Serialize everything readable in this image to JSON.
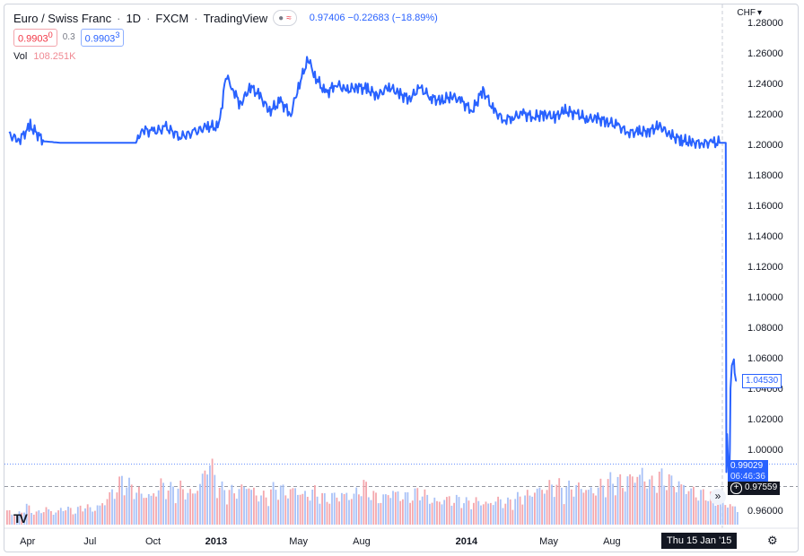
{
  "header": {
    "symbol": "Euro / Swiss Franc",
    "interval": "1D",
    "exchange": "FXCM",
    "source": "TradingView",
    "last_price": "0.97406",
    "change": "−0.22683",
    "change_pct": "(−18.89%)",
    "bid": "0.9903",
    "bid_sup": "0",
    "spread": "0.3",
    "ask": "0.9903",
    "ask_sup": "3",
    "volume_label": "Vol",
    "volume_value": "108.251K",
    "currency": "CHF"
  },
  "price_tags": {
    "current": "1.04530",
    "bid_line": "0.99029",
    "countdown": "06:46:36",
    "crosshair_price": "0.97559",
    "crosshair_time": "Thu 15 Jan '15"
  },
  "colors": {
    "line": "#2962ff",
    "up_volume": "#a9c2f7",
    "down_volume": "#f4a7ad",
    "axis_text": "#131722"
  },
  "icons": {
    "settings": "gear-icon",
    "scroll_right": "double-chevron-right-icon",
    "logo": "tradingview-logo-icon"
  },
  "chart_data": {
    "type": "line",
    "title": "Euro / Swiss Franc",
    "xlabel": "",
    "ylabel": "",
    "ylim": [
      0.95,
      1.28
    ],
    "y_ticks": [
      "1.28000",
      "1.26000",
      "1.24000",
      "1.22000",
      "1.20000",
      "1.18000",
      "1.16000",
      "1.14000",
      "1.12000",
      "1.10000",
      "1.08000",
      "1.06000",
      "1.04000",
      "1.02000",
      "1.00000",
      "0.96000"
    ],
    "x_tick_labels": [
      "Apr",
      "Jul",
      "Oct",
      "2013",
      "May",
      "Aug",
      "2014",
      "May",
      "Aug"
    ],
    "x": [
      "2012-03-05",
      "2012-03-20",
      "2012-04-05",
      "2012-04-25",
      "2012-05-20",
      "2012-06-20",
      "2012-07-20",
      "2012-08-20",
      "2012-09-06",
      "2012-09-15",
      "2012-10-01",
      "2012-10-20",
      "2012-11-10",
      "2012-12-01",
      "2012-12-20",
      "2013-01-05",
      "2013-01-15",
      "2013-01-25",
      "2013-02-05",
      "2013-02-20",
      "2013-03-05",
      "2013-03-20",
      "2013-04-05",
      "2013-04-20",
      "2013-05-01",
      "2013-05-15",
      "2013-05-25",
      "2013-06-10",
      "2013-06-25",
      "2013-07-10",
      "2013-07-25",
      "2013-08-10",
      "2013-08-25",
      "2013-09-10",
      "2013-09-25",
      "2013-10-10",
      "2013-10-25",
      "2013-11-10",
      "2013-11-25",
      "2013-12-10",
      "2013-12-25",
      "2014-01-10",
      "2014-01-25",
      "2014-02-10",
      "2014-02-25",
      "2014-03-10",
      "2014-03-25",
      "2014-04-10",
      "2014-04-25",
      "2014-05-10",
      "2014-05-25",
      "2014-06-10",
      "2014-06-25",
      "2014-07-10",
      "2014-07-25",
      "2014-08-10",
      "2014-08-25",
      "2014-09-10",
      "2014-09-25",
      "2014-10-10",
      "2014-10-25",
      "2014-11-10",
      "2014-11-25",
      "2014-12-10",
      "2014-12-25",
      "2015-01-05",
      "2015-01-14",
      "2015-01-15",
      "2015-01-16",
      "2015-01-19",
      "2015-01-20",
      "2015-01-21",
      "2015-01-23",
      "2015-01-26",
      "2015-01-27",
      "2015-01-29",
      "2015-01-30"
    ],
    "series": [
      {
        "values": [
          1.206,
          1.203,
          1.212,
          1.202,
          1.201,
          1.201,
          1.201,
          1.201,
          1.201,
          1.21,
          1.208,
          1.211,
          1.205,
          1.208,
          1.212,
          1.211,
          1.245,
          1.237,
          1.226,
          1.238,
          1.232,
          1.222,
          1.228,
          1.22,
          1.238,
          1.256,
          1.245,
          1.233,
          1.24,
          1.235,
          1.238,
          1.236,
          1.232,
          1.238,
          1.233,
          1.23,
          1.237,
          1.231,
          1.228,
          1.232,
          1.228,
          1.222,
          1.236,
          1.222,
          1.216,
          1.218,
          1.22,
          1.218,
          1.22,
          1.218,
          1.222,
          1.22,
          1.217,
          1.217,
          1.215,
          1.212,
          1.208,
          1.208,
          1.209,
          1.212,
          1.206,
          1.203,
          1.201,
          1.201,
          1.201,
          1.201,
          1.201,
          0.985,
          1.01,
          0.975,
          1.0,
          1.04,
          1.055,
          1.059,
          1.05,
          1.045,
          1.045
        ]
      }
    ],
    "volume": [
      2.0,
      1.2,
      2.5,
      1.5,
      2.2,
      1.6,
      2.4,
      1.7,
      2.6,
      2.0,
      3.0,
      4.5,
      6.0,
      5.0,
      4.2,
      3.8,
      5.5,
      4.8,
      5.0,
      4.2,
      5.1,
      9.0,
      5.0,
      4.5,
      4.6,
      5.5,
      4.0,
      3.8,
      5.2,
      4.5,
      4.8,
      4.0,
      4.5,
      3.6,
      3.9,
      4.2,
      3.8,
      5.5,
      4.0,
      3.5,
      4.6,
      4.0,
      3.8,
      4.6,
      3.4,
      3.2,
      3.6,
      3.4,
      3.0,
      3.2,
      2.8,
      3.4,
      3.0,
      3.6,
      4.0,
      4.6,
      5.0,
      5.5,
      4.8,
      5.2,
      5.0,
      4.5,
      5.5,
      6.0,
      5.8,
      6.5,
      7.0,
      5.5,
      6.5,
      6.0,
      5.5,
      4.8,
      4.2,
      4.0,
      3.2,
      2.8,
      2.2
    ]
  }
}
